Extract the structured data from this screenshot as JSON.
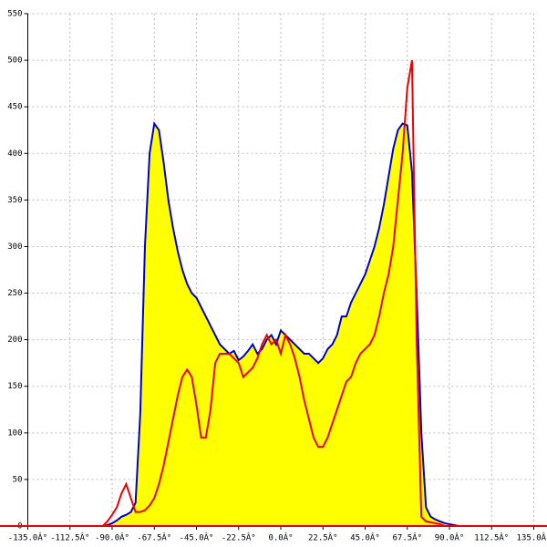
{
  "chart_data": {
    "type": "area-line",
    "x": [
      -95,
      -92.5,
      -90,
      -87.5,
      -85,
      -82.5,
      -80,
      -77.5,
      -75,
      -72.5,
      -70,
      -67.5,
      -65,
      -62.5,
      -60,
      -57.5,
      -55,
      -52.5,
      -50,
      -47.5,
      -45,
      -42.5,
      -40,
      -37.5,
      -35,
      -32.5,
      -30,
      -27.5,
      -25,
      -22.5,
      -20,
      -17.5,
      -15,
      -12.5,
      -10,
      -7.5,
      -5,
      -2.5,
      0,
      2.5,
      5,
      7.5,
      10,
      12.5,
      15,
      17.5,
      20,
      22.5,
      25,
      27.5,
      30,
      32.5,
      35,
      37.5,
      40,
      42.5,
      45,
      47.5,
      50,
      52.5,
      55,
      57.5,
      60,
      62.5,
      65,
      67.5,
      70,
      72.5,
      75,
      77.5,
      80,
      82.5,
      85,
      87.5,
      90,
      92.5,
      95
    ],
    "series": [
      {
        "color": "#0000cc",
        "fill": "#ffff00",
        "values": [
          0,
          1,
          3,
          6,
          10,
          12,
          15,
          25,
          120,
          300,
          400,
          432,
          425,
          390,
          350,
          320,
          295,
          275,
          260,
          250,
          245,
          235,
          225,
          215,
          205,
          195,
          190,
          185,
          188,
          178,
          182,
          188,
          195,
          185,
          190,
          200,
          205,
          195,
          210,
          205,
          200,
          195,
          190,
          185,
          185,
          180,
          175,
          180,
          190,
          195,
          205,
          225,
          225,
          240,
          250,
          260,
          270,
          285,
          300,
          320,
          345,
          375,
          405,
          425,
          432,
          430,
          380,
          250,
          100,
          20,
          10,
          7,
          5,
          3,
          2,
          1,
          0
        ]
      },
      {
        "color": "#ee0000",
        "values": [
          0,
          5,
          12,
          20,
          35,
          45,
          30,
          15,
          15,
          17,
          22,
          30,
          45,
          65,
          90,
          115,
          140,
          160,
          168,
          160,
          130,
          95,
          95,
          125,
          175,
          185,
          185,
          185,
          180,
          175,
          160,
          165,
          170,
          180,
          195,
          205,
          195,
          200,
          185,
          205,
          195,
          180,
          160,
          135,
          115,
          95,
          85,
          85,
          95,
          110,
          125,
          140,
          155,
          160,
          175,
          185,
          190,
          195,
          205,
          225,
          250,
          270,
          300,
          350,
          400,
          470,
          500,
          200,
          10,
          5,
          4,
          3,
          2,
          0,
          0,
          0,
          0
        ]
      }
    ],
    "xlim": [
      -135,
      135
    ],
    "ylim": [
      0,
      550
    ],
    "xticks": [
      {
        "value": -135,
        "label": "-135.0Â°"
      },
      {
        "value": -112.5,
        "label": "-112.5Â°"
      },
      {
        "value": -90,
        "label": "-90.0Â°"
      },
      {
        "value": -67.5,
        "label": "-67.5Â°"
      },
      {
        "value": -45,
        "label": "-45.0Â°"
      },
      {
        "value": -22.5,
        "label": "-22.5Â°"
      },
      {
        "value": 0,
        "label": "0.0Â°"
      },
      {
        "value": 22.5,
        "label": "22.5Â°"
      },
      {
        "value": 45,
        "label": "45.0Â°"
      },
      {
        "value": 67.5,
        "label": "67.5Â°"
      },
      {
        "value": 90,
        "label": "90.0Â°"
      },
      {
        "value": 112.5,
        "label": "112.5Â°"
      },
      {
        "value": 135,
        "label": "135.0Â°"
      }
    ],
    "yticks": [
      0,
      50,
      100,
      150,
      200,
      250,
      300,
      350,
      400,
      450,
      500,
      550
    ],
    "grid": true
  }
}
